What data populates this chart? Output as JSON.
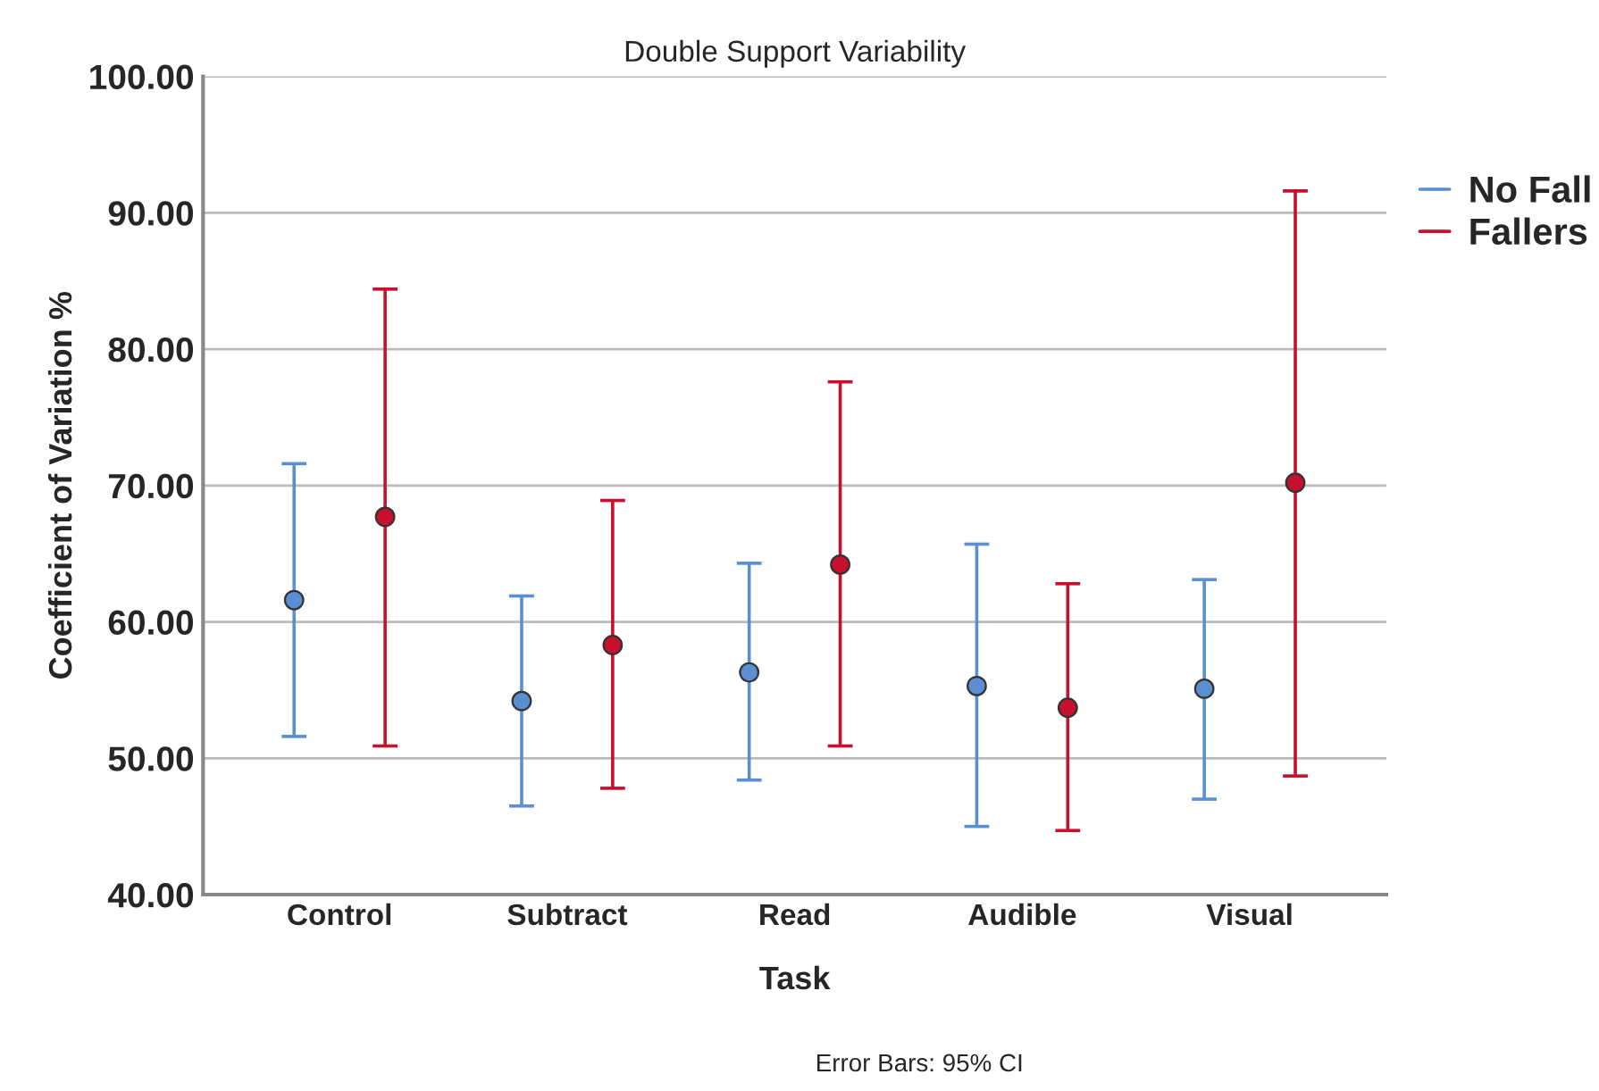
{
  "chart_data": {
    "type": "scatter",
    "title": "Double Support Variability",
    "xlabel": "Task",
    "ylabel": "Coefficient of Variation %",
    "annotations": [
      "Error Bars: 95% CI"
    ],
    "categories": [
      "Control",
      "Subtract",
      "Read",
      "Audible",
      "Visual"
    ],
    "series": [
      {
        "name": "No Fall",
        "color": "#5b8fd1",
        "values": [
          61.6,
          54.2,
          56.3,
          55.3,
          55.1
        ],
        "errors": [
          [
            51.6,
            71.6
          ],
          [
            46.5,
            61.9
          ],
          [
            48.4,
            64.3
          ],
          [
            45.0,
            65.7
          ],
          [
            47.0,
            63.1
          ]
        ]
      },
      {
        "name": "Fallers",
        "color": "#c8102e",
        "values": [
          67.7,
          58.3,
          64.2,
          53.7,
          70.2
        ],
        "errors": [
          [
            50.9,
            84.4
          ],
          [
            47.8,
            68.9
          ],
          [
            50.9,
            77.6
          ],
          [
            44.7,
            62.8
          ],
          [
            48.7,
            91.6
          ]
        ]
      }
    ],
    "ylim": [
      40,
      100
    ],
    "yticks": [
      {
        "value": 40,
        "label": "40.00"
      },
      {
        "value": 50,
        "label": "50.00"
      },
      {
        "value": 60,
        "label": "60.00"
      },
      {
        "value": 70,
        "label": "70.00"
      },
      {
        "value": 80,
        "label": "80.00"
      },
      {
        "value": 90,
        "label": "90.00"
      },
      {
        "value": 100,
        "label": "100.00"
      }
    ],
    "grid": "y",
    "legend": "top right",
    "marker": "circle"
  }
}
